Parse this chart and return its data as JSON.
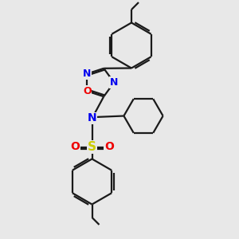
{
  "bg_color": "#e8e8e8",
  "bond_color": "#1a1a1a",
  "N_color": "#0000ee",
  "O_color": "#ee0000",
  "S_color": "#cccc00",
  "font_size_atom": 10,
  "line_width": 1.6,
  "figsize": [
    3.0,
    3.0
  ],
  "dpi": 100,
  "xlim": [
    0,
    10
  ],
  "ylim": [
    0,
    10
  ]
}
